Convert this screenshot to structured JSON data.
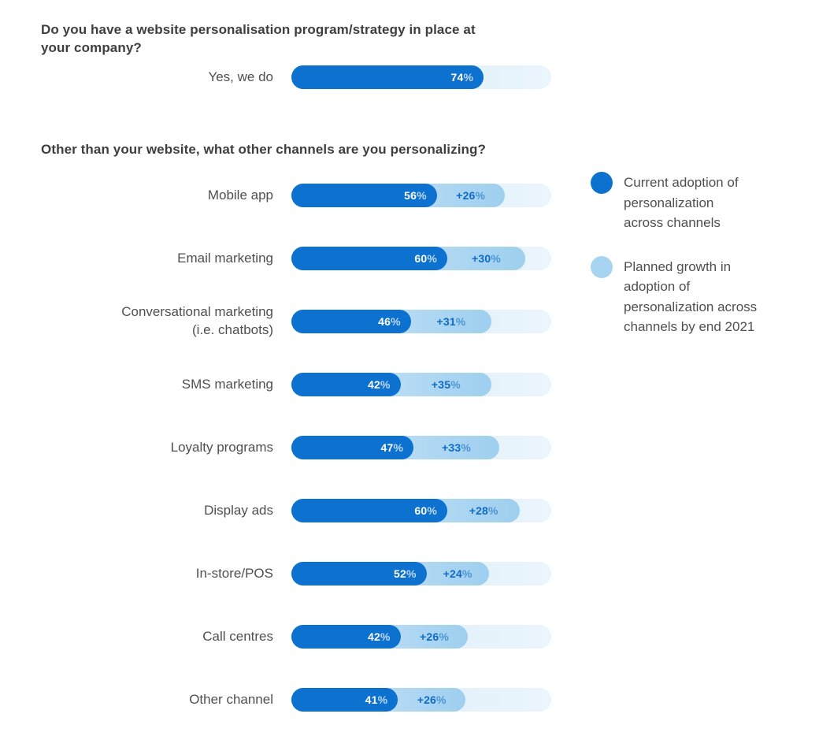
{
  "colors": {
    "current_bar": "#0d72cf",
    "growth_bar_light": "#d5eafa",
    "growth_bar": "#9ecfef",
    "track": "#dcedf9",
    "growth_text": "#0f6cc4",
    "heading_text": "#3e3e3e",
    "label_text": "#4f4f4f",
    "bar_value_text": "#ffffff"
  },
  "sections": [
    {
      "question": "Do you have a website personalisation program/strategy in place at\nyour company?",
      "rows": [
        {
          "label": "Yes, we do",
          "current": 74,
          "current_label": "74%",
          "growth": null,
          "growth_label": null
        }
      ]
    },
    {
      "question": "Other than your website, what other channels are you personalizing?",
      "rows": [
        {
          "label": "Mobile app",
          "current": 56,
          "current_label": "56%",
          "growth": 26,
          "growth_label": "+26%"
        },
        {
          "label": "Email marketing",
          "current": 60,
          "current_label": "60%",
          "growth": 30,
          "growth_label": "+30%"
        },
        {
          "label": "Conversational marketing\n(i.e. chatbots)",
          "current": 46,
          "current_label": "46%",
          "growth": 31,
          "growth_label": "+31%"
        },
        {
          "label": "SMS marketing",
          "current": 42,
          "current_label": "42%",
          "growth": 35,
          "growth_label": "+35%"
        },
        {
          "label": "Loyalty programs",
          "current": 47,
          "current_label": "47%",
          "growth": 33,
          "growth_label": "+33%"
        },
        {
          "label": "Display ads",
          "current": 60,
          "current_label": "60%",
          "growth": 28,
          "growth_label": "+28%"
        },
        {
          "label": "In-store/POS",
          "current": 52,
          "current_label": "52%",
          "growth": 24,
          "growth_label": "+24%"
        },
        {
          "label": "Call centres",
          "current": 42,
          "current_label": "42%",
          "growth": 26,
          "growth_label": "+26%"
        },
        {
          "label": "Other channel",
          "current": 41,
          "current_label": "41%",
          "growth": 26,
          "growth_label": "+26%"
        }
      ]
    }
  ],
  "legend": [
    {
      "swatch": "current",
      "color": "#0d72cf",
      "text": "Current adoption of\npersonalization\nacross channels"
    },
    {
      "swatch": "growth",
      "color": "#a6d4f1",
      "text": "Planned growth in\nadoption of\npersonalization across\nchannels by end 2021"
    }
  ],
  "chart_data": [
    {
      "type": "bar",
      "orientation": "horizontal",
      "title": "Do you have a website personalisation program/strategy in place at your company?",
      "categories": [
        "Yes, we do"
      ],
      "series": [
        {
          "name": "Current adoption of personalization across channels",
          "values": [
            74
          ]
        }
      ],
      "value_labels": [
        "74%"
      ],
      "xlim": [
        0,
        100
      ],
      "grid": false,
      "legend_position": "none"
    },
    {
      "type": "bar",
      "orientation": "horizontal",
      "stacked": true,
      "title": "Other than your website, what other channels are you personalizing?",
      "categories": [
        "Mobile app",
        "Email marketing",
        "Conversational marketing (i.e. chatbots)",
        "SMS marketing",
        "Loyalty programs",
        "Display ads",
        "In-store/POS",
        "Call centres",
        "Other channel"
      ],
      "series": [
        {
          "name": "Current adoption of personalization across channels",
          "values": [
            56,
            60,
            46,
            42,
            47,
            60,
            52,
            42,
            41
          ]
        },
        {
          "name": "Planned growth in adoption of personalization across channels by end 2021",
          "values": [
            26,
            30,
            31,
            35,
            33,
            28,
            24,
            26,
            26
          ]
        }
      ],
      "value_labels": [
        [
          "56%",
          "+26%"
        ],
        [
          "60%",
          "+30%"
        ],
        [
          "46%",
          "+31%"
        ],
        [
          "42%",
          "+35%"
        ],
        [
          "47%",
          "+33%"
        ],
        [
          "60%",
          "+28%"
        ],
        [
          "52%",
          "+24%"
        ],
        [
          "42%",
          "+26%"
        ],
        [
          "41%",
          "+26%"
        ]
      ],
      "xlim": [
        0,
        100
      ],
      "grid": false,
      "legend_position": "right"
    }
  ]
}
